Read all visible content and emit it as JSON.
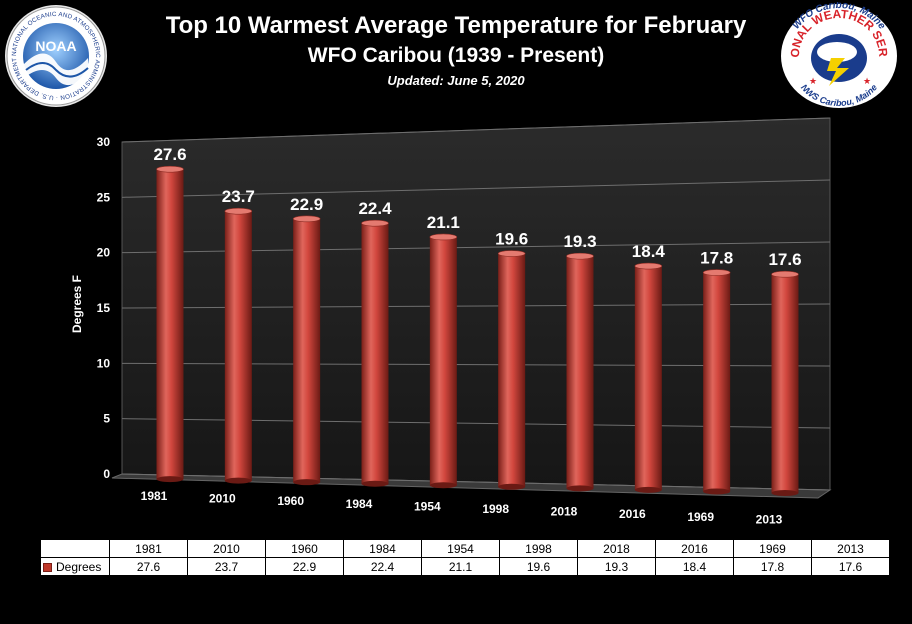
{
  "header": {
    "title": "Top 10 Warmest Average Temperature for February",
    "subtitle": "WFO Caribou (1939 - Present)",
    "updated": "Updated: June 5, 2020"
  },
  "logos": {
    "noaa": {
      "center_text": "NOAA",
      "ring_text": "NATIONAL OCEANIC AND ATMOSPHERIC ADMINISTRATION · U.S. DEPARTMENT OF COMMERCE"
    },
    "nws": {
      "top_text": "WFO Caribou, Maine",
      "middle_text": "NATIONAL WEATHER SERVICE",
      "bottom_text": "NWS Caribou, Maine"
    }
  },
  "colors": {
    "background": "#000000",
    "bar": "#c9413a",
    "bar_dark": "#7a1f18",
    "bar_light": "#ef7a6f"
  },
  "chart_data": {
    "type": "bar",
    "categories": [
      "1981",
      "2010",
      "1960",
      "1984",
      "1954",
      "1998",
      "2018",
      "2016",
      "1969",
      "2013"
    ],
    "series": [
      {
        "name": "Degrees",
        "values": [
          27.6,
          23.7,
          22.9,
          22.4,
          21.1,
          19.6,
          19.3,
          18.4,
          17.8,
          17.6
        ]
      }
    ],
    "ylabel": "Degrees F",
    "xlabel": "",
    "ylim": [
      0,
      30
    ],
    "yticks": [
      0,
      5,
      10,
      15,
      20,
      25,
      30
    ],
    "grid": true,
    "legend": "data table below chart",
    "style": "3d perspective"
  }
}
